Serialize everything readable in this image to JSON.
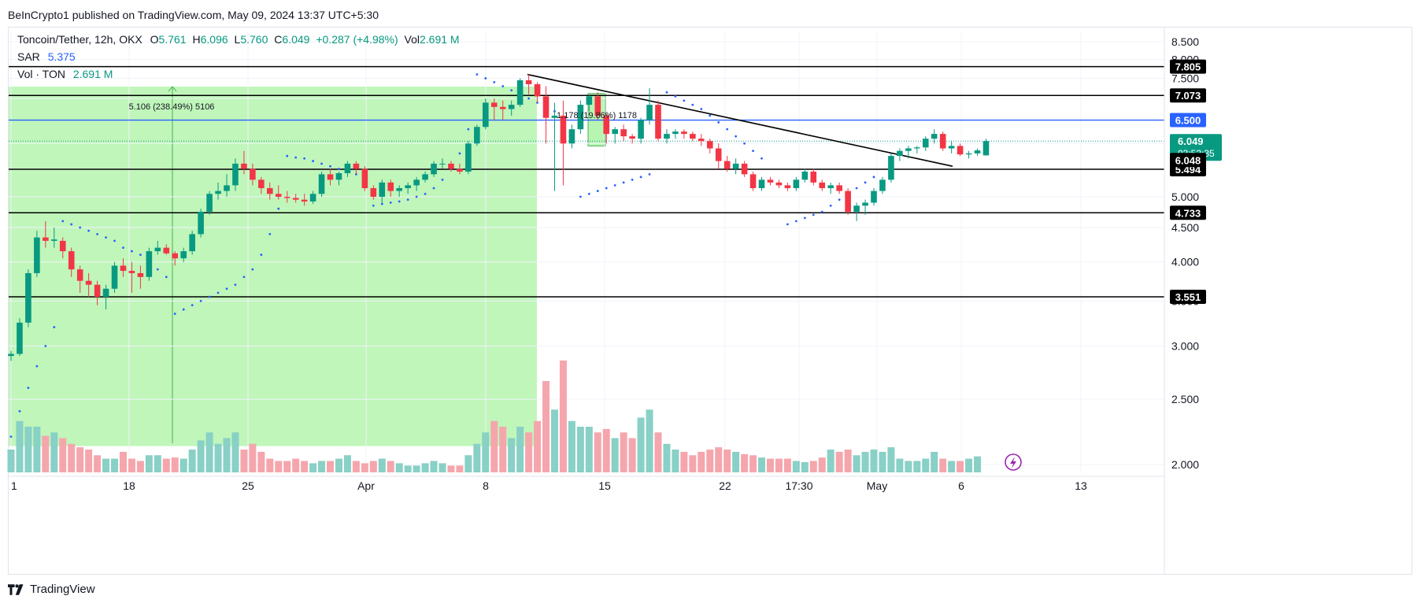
{
  "header": {
    "publisher_line": "BeInCrypto1 published on TradingView.com, May 09, 2024 13:37 UTC+5:30"
  },
  "legend": {
    "symbol": "Toncoin/Tether, 12h, OKX",
    "ohlc": [
      {
        "k": "O",
        "v": "5.761"
      },
      {
        "k": "H",
        "v": "6.096"
      },
      {
        "k": "L",
        "v": "5.760"
      },
      {
        "k": "C",
        "v": "6.049"
      }
    ],
    "change": "+0.287 (+4.98%)",
    "vol_key": "Vol",
    "vol_value": "2.691 M",
    "sar_label": "SAR",
    "sar_value": "5.375",
    "vol_ton_label": "Vol · TON",
    "vol_ton_value": "2.691 M"
  },
  "footer": {
    "brand": "TradingView"
  },
  "colors": {
    "up": "#089981",
    "down": "#f23645",
    "up_vol": "#89d0c6",
    "down_vol": "#f5a6ad",
    "sar": "#2962ff",
    "range_fill": "#b9f5b2",
    "hline": "#000000",
    "blue_line": "#2962ff",
    "price_box": "#089981"
  },
  "chart_data": {
    "type": "candlestick",
    "title": "Toncoin/Tether, 12h, OKX",
    "y_axis_ticks": [
      "2.000",
      "2.500",
      "3.000",
      "3.500",
      "4.000",
      "4.500",
      "5.000",
      "5.500",
      "6.000",
      "6.500",
      "7.000",
      "7.500",
      "8.000",
      "8.500"
    ],
    "y_axis_scale": "log",
    "x_axis_ticks": [
      "1",
      "18",
      "25",
      "Apr",
      "8",
      "15",
      "22",
      "17:30",
      "May",
      "6",
      "13"
    ],
    "horizontal_levels": [
      {
        "value": 7.805,
        "label": "7.805",
        "color": "#000000"
      },
      {
        "value": 7.073,
        "label": "7.073",
        "color": "#000000"
      },
      {
        "value": 6.5,
        "label": "6.500",
        "color": "#2962ff"
      },
      {
        "value": 5.494,
        "label": "5.494",
        "color": "#000000"
      },
      {
        "value": 4.733,
        "label": "4.733",
        "color": "#000000"
      },
      {
        "value": 3.551,
        "label": "3.551",
        "color": "#000000"
      }
    ],
    "last_price": {
      "price": "6.049",
      "countdown": "03:52:35",
      "prev_close_label": "6.048"
    },
    "annotations": [
      {
        "text": "5.106 (238.49%) 5106"
      },
      {
        "text": "1.178 (19.86%) 1178"
      }
    ],
    "candles": [
      [
        2.9,
        2.95,
        2.85,
        2.92
      ],
      [
        2.92,
        3.3,
        2.9,
        3.25
      ],
      [
        3.25,
        3.9,
        3.2,
        3.85
      ],
      [
        3.85,
        4.45,
        3.8,
        4.35
      ],
      [
        4.35,
        4.6,
        4.2,
        4.3
      ],
      [
        4.3,
        4.5,
        4.2,
        4.32
      ],
      [
        4.3,
        4.35,
        4.05,
        4.15
      ],
      [
        4.15,
        4.2,
        3.8,
        3.9
      ],
      [
        3.9,
        3.95,
        3.6,
        3.75
      ],
      [
        3.75,
        3.85,
        3.55,
        3.7
      ],
      [
        3.7,
        3.75,
        3.45,
        3.55
      ],
      [
        3.55,
        3.7,
        3.4,
        3.65
      ],
      [
        3.65,
        4.0,
        3.6,
        3.95
      ],
      [
        3.95,
        4.05,
        3.8,
        3.88
      ],
      [
        3.88,
        4.0,
        3.6,
        3.85
      ],
      [
        3.85,
        3.95,
        3.65,
        3.8
      ],
      [
        3.8,
        4.2,
        3.75,
        4.15
      ],
      [
        4.15,
        4.3,
        4.1,
        4.2
      ],
      [
        4.2,
        4.25,
        4.1,
        4.12
      ],
      [
        4.12,
        4.15,
        3.95,
        4.05
      ],
      [
        4.05,
        4.2,
        4.0,
        4.15
      ],
      [
        4.15,
        4.45,
        4.1,
        4.4
      ],
      [
        4.4,
        4.8,
        4.35,
        4.75
      ],
      [
        4.75,
        5.1,
        4.7,
        5.05
      ],
      [
        5.05,
        5.25,
        4.95,
        5.1
      ],
      [
        5.1,
        5.4,
        5.0,
        5.2
      ],
      [
        5.2,
        5.7,
        5.1,
        5.6
      ],
      [
        5.6,
        5.85,
        5.4,
        5.5
      ],
      [
        5.5,
        5.6,
        5.2,
        5.3
      ],
      [
        5.3,
        5.35,
        5.05,
        5.15
      ],
      [
        5.15,
        5.25,
        4.95,
        5.05
      ],
      [
        5.05,
        5.2,
        4.95,
        5.0
      ],
      [
        5.0,
        5.1,
        4.9,
        4.98
      ],
      [
        4.98,
        5.05,
        4.9,
        4.95
      ],
      [
        4.95,
        5.05,
        4.85,
        4.92
      ],
      [
        4.92,
        5.1,
        4.88,
        5.05
      ],
      [
        5.05,
        5.45,
        5.0,
        5.4
      ],
      [
        5.4,
        5.5,
        5.2,
        5.3
      ],
      [
        5.3,
        5.45,
        5.2,
        5.42
      ],
      [
        5.42,
        5.65,
        5.35,
        5.6
      ],
      [
        5.6,
        5.65,
        5.4,
        5.5
      ],
      [
        5.5,
        5.55,
        5.1,
        5.15
      ],
      [
        5.15,
        5.2,
        4.95,
        5.0
      ],
      [
        5.0,
        5.3,
        4.9,
        5.25
      ],
      [
        5.25,
        5.3,
        5.0,
        5.1
      ],
      [
        5.1,
        5.2,
        5.0,
        5.15
      ],
      [
        5.15,
        5.25,
        5.05,
        5.2
      ],
      [
        5.2,
        5.35,
        5.1,
        5.3
      ],
      [
        5.3,
        5.45,
        5.25,
        5.4
      ],
      [
        5.4,
        5.65,
        5.35,
        5.6
      ],
      [
        5.6,
        5.7,
        5.5,
        5.6
      ],
      [
        5.6,
        5.65,
        5.45,
        5.5
      ],
      [
        5.5,
        5.6,
        5.4,
        5.45
      ],
      [
        5.45,
        6.05,
        5.4,
        6.0
      ],
      [
        6.0,
        6.4,
        5.95,
        6.35
      ],
      [
        6.35,
        7.0,
        6.3,
        6.9
      ],
      [
        6.9,
        7.0,
        6.5,
        6.8
      ],
      [
        6.8,
        6.95,
        6.5,
        6.75
      ],
      [
        6.75,
        6.95,
        6.6,
        6.85
      ],
      [
        6.85,
        7.5,
        6.8,
        7.45
      ],
      [
        7.45,
        7.6,
        7.1,
        7.35
      ],
      [
        7.35,
        7.4,
        6.9,
        7.05
      ],
      [
        7.05,
        7.3,
        6.0,
        6.55
      ],
      [
        6.55,
        6.9,
        5.1,
        6.6
      ],
      [
        6.6,
        6.95,
        5.2,
        6.0
      ],
      [
        6.0,
        6.4,
        5.9,
        6.3
      ],
      [
        6.3,
        6.95,
        6.2,
        6.85
      ],
      [
        6.85,
        7.1,
        6.7,
        7.05
      ],
      [
        7.05,
        7.15,
        6.5,
        6.6
      ],
      [
        6.6,
        6.65,
        6.0,
        6.2
      ],
      [
        6.2,
        6.35,
        6.0,
        6.3
      ],
      [
        6.3,
        6.4,
        6.05,
        6.15
      ],
      [
        6.15,
        6.2,
        6.0,
        6.1
      ],
      [
        6.1,
        6.55,
        6.0,
        6.5
      ],
      [
        6.5,
        7.25,
        6.4,
        6.85
      ],
      [
        6.85,
        6.95,
        6.05,
        6.1
      ],
      [
        6.1,
        6.3,
        6.0,
        6.2
      ],
      [
        6.2,
        6.3,
        6.1,
        6.25
      ],
      [
        6.25,
        6.3,
        6.1,
        6.2
      ],
      [
        6.2,
        6.25,
        6.05,
        6.1
      ],
      [
        6.1,
        6.2,
        5.95,
        6.05
      ],
      [
        6.05,
        6.1,
        5.8,
        5.9
      ],
      [
        5.9,
        6.0,
        5.5,
        5.65
      ],
      [
        5.65,
        5.75,
        5.45,
        5.5
      ],
      [
        5.5,
        5.7,
        5.4,
        5.6
      ],
      [
        5.6,
        5.65,
        5.35,
        5.4
      ],
      [
        5.4,
        5.45,
        5.1,
        5.15
      ],
      [
        5.15,
        5.35,
        5.1,
        5.3
      ],
      [
        5.3,
        5.35,
        5.2,
        5.25
      ],
      [
        5.25,
        5.3,
        5.15,
        5.2
      ],
      [
        5.2,
        5.25,
        5.1,
        5.15
      ],
      [
        5.15,
        5.35,
        5.1,
        5.3
      ],
      [
        5.3,
        5.5,
        5.25,
        5.45
      ],
      [
        5.45,
        5.5,
        5.2,
        5.25
      ],
      [
        5.25,
        5.3,
        5.1,
        5.15
      ],
      [
        5.15,
        5.25,
        5.05,
        5.2
      ],
      [
        5.2,
        5.25,
        5.05,
        5.1
      ],
      [
        5.1,
        5.15,
        4.7,
        4.75
      ],
      [
        4.75,
        4.9,
        4.6,
        4.85
      ],
      [
        4.85,
        4.95,
        4.7,
        4.9
      ],
      [
        4.9,
        5.15,
        4.85,
        5.1
      ],
      [
        5.1,
        5.35,
        5.05,
        5.3
      ],
      [
        5.3,
        5.8,
        5.25,
        5.75
      ],
      [
        5.75,
        5.9,
        5.65,
        5.85
      ],
      [
        5.85,
        5.95,
        5.7,
        5.9
      ],
      [
        5.9,
        5.95,
        5.8,
        5.92
      ],
      [
        5.92,
        6.15,
        5.85,
        6.1
      ],
      [
        6.1,
        6.3,
        6.0,
        6.2
      ],
      [
        6.2,
        6.25,
        5.85,
        5.9
      ],
      [
        5.9,
        6.05,
        5.8,
        5.95
      ],
      [
        5.95,
        6.0,
        5.75,
        5.78
      ],
      [
        5.78,
        5.85,
        5.7,
        5.8
      ],
      [
        5.8,
        5.9,
        5.75,
        5.86
      ],
      [
        5.761,
        6.096,
        5.76,
        6.049
      ]
    ],
    "volume_ratio": [
      0.2,
      0.45,
      0.4,
      0.4,
      0.32,
      0.35,
      0.3,
      0.25,
      0.22,
      0.2,
      0.15,
      0.12,
      0.12,
      0.18,
      0.12,
      0.1,
      0.15,
      0.15,
      0.12,
      0.13,
      0.12,
      0.2,
      0.28,
      0.35,
      0.25,
      0.3,
      0.35,
      0.2,
      0.25,
      0.18,
      0.12,
      0.1,
      0.1,
      0.12,
      0.1,
      0.08,
      0.1,
      0.1,
      0.12,
      0.15,
      0.1,
      0.08,
      0.1,
      0.12,
      0.1,
      0.08,
      0.06,
      0.06,
      0.08,
      0.1,
      0.08,
      0.06,
      0.06,
      0.15,
      0.25,
      0.35,
      0.45,
      0.4,
      0.3,
      0.4,
      0.35,
      0.45,
      0.8,
      0.55,
      0.98,
      0.45,
      0.4,
      0.4,
      0.35,
      0.38,
      0.3,
      0.35,
      0.3,
      0.48,
      0.55,
      0.35,
      0.25,
      0.2,
      0.18,
      0.15,
      0.18,
      0.2,
      0.22,
      0.2,
      0.18,
      0.16,
      0.15,
      0.13,
      0.12,
      0.12,
      0.12,
      0.1,
      0.09,
      0.1,
      0.13,
      0.2,
      0.18,
      0.2,
      0.15,
      0.18,
      0.2,
      0.18,
      0.22,
      0.12,
      0.1,
      0.1,
      0.12,
      0.18,
      0.12,
      0.1,
      0.1,
      0.12,
      0.14
    ],
    "sar": [
      2.2,
      2.4,
      2.6,
      2.8,
      3.0,
      3.2,
      4.6,
      4.55,
      4.5,
      4.45,
      4.4,
      4.35,
      4.3,
      4.2,
      4.15,
      4.1,
      4.0,
      3.9,
      3.8,
      3.35,
      3.4,
      3.45,
      3.5,
      3.55,
      3.6,
      3.65,
      3.7,
      3.8,
      3.9,
      4.1,
      4.4,
      4.8,
      5.75,
      5.72,
      5.7,
      5.65,
      5.6,
      5.55,
      5.5,
      5.45,
      5.4,
      5.35,
      4.85,
      4.88,
      4.9,
      4.92,
      4.95,
      5.0,
      5.05,
      5.15,
      5.3,
      5.5,
      5.8,
      6.3,
      7.6,
      7.5,
      7.4,
      7.3,
      7.2,
      7.1,
      7.0,
      6.9,
      6.8,
      6.7,
      null,
      null,
      5.0,
      5.05,
      5.1,
      5.15,
      5.2,
      5.25,
      5.3,
      5.35,
      5.4,
      null,
      7.15,
      7.05,
      6.95,
      6.85,
      6.75,
      6.6,
      6.45,
      6.3,
      6.15,
      6.0,
      5.85,
      5.7,
      null,
      null,
      4.55,
      4.6,
      4.65,
      4.7,
      4.75,
      4.85,
      4.95,
      5.05,
      5.15,
      5.25,
      5.35
    ]
  }
}
